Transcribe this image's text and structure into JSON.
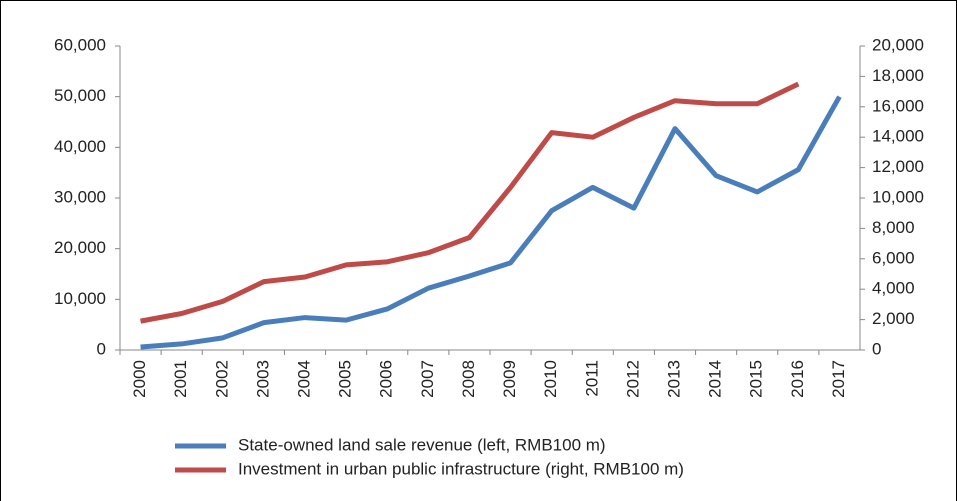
{
  "chart_data": {
    "type": "line",
    "categories": [
      "2000",
      "2001",
      "2002",
      "2003",
      "2004",
      "2005",
      "2006",
      "2007",
      "2008",
      "2009",
      "2010",
      "2011",
      "2012",
      "2013",
      "2014",
      "2015",
      "2016",
      "2017"
    ],
    "series": [
      {
        "name": "State-owned land sale revenue (left, RMB100 m)",
        "color": "#4a7ebb",
        "axis": "y",
        "values": [
          600,
          1200,
          2400,
          5400,
          6400,
          5900,
          8100,
          12200,
          14600,
          17200,
          27500,
          32100,
          28000,
          43700,
          34400,
          31200,
          35600,
          50000
        ]
      },
      {
        "name": "Investment in urban public infrastructure (right, RMB100 m)",
        "color": "#be4b48",
        "axis": "y2",
        "values": [
          1900,
          2400,
          3200,
          4500,
          4800,
          5600,
          5800,
          6400,
          7400,
          10700,
          14300,
          14000,
          15300,
          16400,
          16200,
          16200,
          17500,
          null
        ]
      }
    ],
    "ylim": [
      0,
      60000
    ],
    "yticks": [
      0,
      {
        "value": 10000,
        "label": "10,000"
      },
      {
        "value": 20000,
        "label": "20,000"
      },
      {
        "value": 30000,
        "label": "30,000"
      },
      {
        "value": 40000,
        "label": "40,000"
      },
      {
        "value": 50000,
        "label": "50,000"
      },
      {
        "value": 60000,
        "label": "60,000"
      }
    ],
    "y2lim": [
      0,
      20000
    ],
    "y2ticks": [
      0,
      {
        "value": 2000,
        "label": "2,000"
      },
      {
        "value": 4000,
        "label": "4,000"
      },
      {
        "value": 6000,
        "label": "6,000"
      },
      {
        "value": 8000,
        "label": "8,000"
      },
      {
        "value": 10000,
        "label": "10,000"
      },
      {
        "value": 12000,
        "label": "12,000"
      },
      {
        "value": 14000,
        "label": "14,000"
      },
      {
        "value": 16000,
        "label": "16,000"
      },
      {
        "value": 18000,
        "label": "18,000"
      },
      {
        "value": 20000,
        "label": "20,000"
      }
    ],
    "legend": "bottom"
  }
}
